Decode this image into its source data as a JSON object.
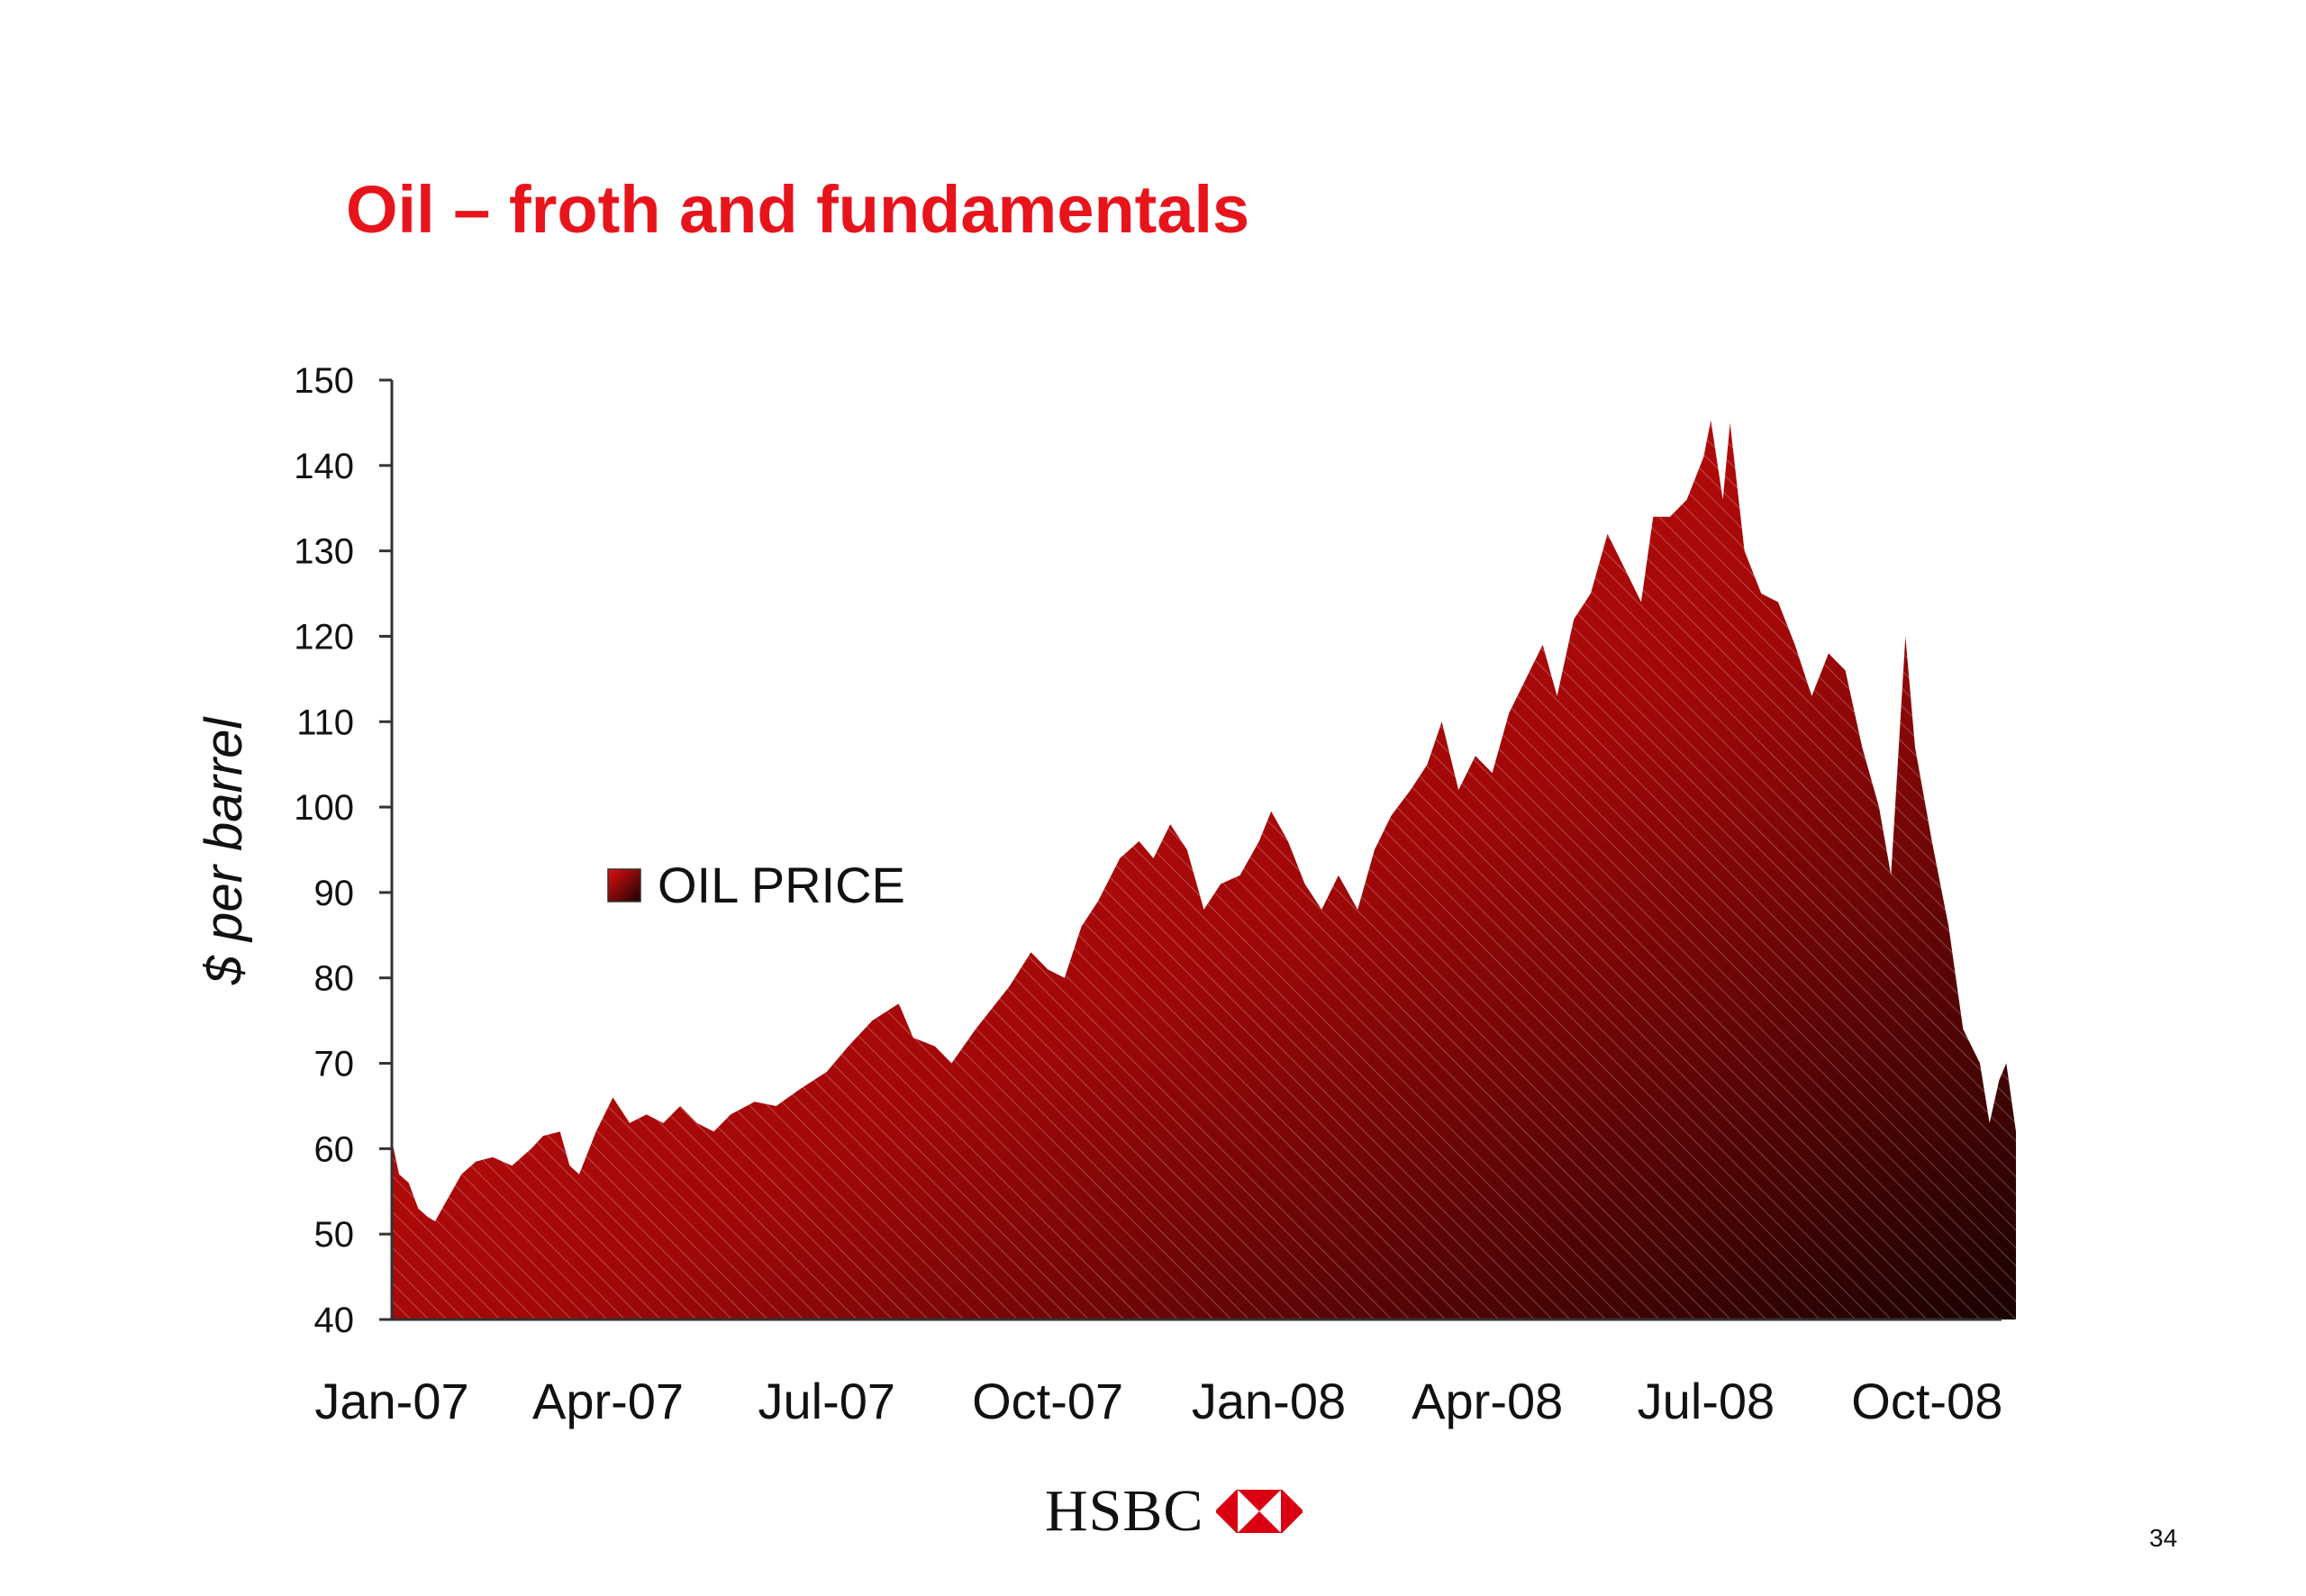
{
  "slide": {
    "title": "Oil – froth and fundamentals",
    "logo_text": "HSBC",
    "page_number": "34"
  },
  "colors": {
    "title": "#e8141c",
    "area_light": "#e0100f",
    "area_dark": "#1a0202",
    "logo_red": "#db0011"
  },
  "chart_data": {
    "type": "area",
    "ylabel": "$ per barrel",
    "xlabel": "",
    "ylim": [
      40,
      150
    ],
    "yticks": [
      "40",
      "50",
      "60",
      "70",
      "80",
      "90",
      "100",
      "110",
      "120",
      "130",
      "140",
      "150"
    ],
    "xticks": [
      "Jan-07",
      "Apr-07",
      "Jul-07",
      "Oct-07",
      "Jan-08",
      "Apr-08",
      "Jul-08",
      "Oct-08"
    ],
    "xlim": [
      "2007-01-01",
      "2008-11-01"
    ],
    "legend": {
      "label": "OIL PRICE",
      "placement": "center-left"
    },
    "grid": false,
    "series": [
      {
        "name": "OIL PRICE",
        "points": [
          [
            "2007-01-01",
            61
          ],
          [
            "2007-01-04",
            57
          ],
          [
            "2007-01-08",
            56
          ],
          [
            "2007-01-12",
            53
          ],
          [
            "2007-01-16",
            52
          ],
          [
            "2007-01-19",
            51.5
          ],
          [
            "2007-01-24",
            54
          ],
          [
            "2007-01-30",
            57
          ],
          [
            "2007-02-05",
            58.5
          ],
          [
            "2007-02-12",
            59
          ],
          [
            "2007-02-20",
            58
          ],
          [
            "2007-02-28",
            60
          ],
          [
            "2007-03-05",
            61.5
          ],
          [
            "2007-03-12",
            62
          ],
          [
            "2007-03-16",
            58
          ],
          [
            "2007-03-20",
            57
          ],
          [
            "2007-03-27",
            62
          ],
          [
            "2007-04-03",
            66
          ],
          [
            "2007-04-10",
            63
          ],
          [
            "2007-04-17",
            64
          ],
          [
            "2007-04-24",
            63
          ],
          [
            "2007-05-01",
            65
          ],
          [
            "2007-05-08",
            63
          ],
          [
            "2007-05-15",
            62
          ],
          [
            "2007-05-22",
            64
          ],
          [
            "2007-06-01",
            65.5
          ],
          [
            "2007-06-10",
            65
          ],
          [
            "2007-06-20",
            67
          ],
          [
            "2007-07-01",
            69
          ],
          [
            "2007-07-10",
            72
          ],
          [
            "2007-07-20",
            75
          ],
          [
            "2007-07-31",
            77
          ],
          [
            "2007-08-06",
            73
          ],
          [
            "2007-08-15",
            72
          ],
          [
            "2007-08-22",
            70
          ],
          [
            "2007-09-01",
            74
          ],
          [
            "2007-09-15",
            79
          ],
          [
            "2007-09-24",
            83
          ],
          [
            "2007-10-01",
            81
          ],
          [
            "2007-10-08",
            80
          ],
          [
            "2007-10-15",
            86
          ],
          [
            "2007-10-22",
            89
          ],
          [
            "2007-10-31",
            94
          ],
          [
            "2007-11-08",
            96
          ],
          [
            "2007-11-14",
            94
          ],
          [
            "2007-11-21",
            98
          ],
          [
            "2007-11-28",
            95
          ],
          [
            "2007-12-05",
            88
          ],
          [
            "2007-12-12",
            91
          ],
          [
            "2007-12-20",
            92
          ],
          [
            "2007-12-28",
            96
          ],
          [
            "2008-01-02",
            99.5
          ],
          [
            "2008-01-09",
            96
          ],
          [
            "2008-01-16",
            91
          ],
          [
            "2008-01-23",
            88
          ],
          [
            "2008-01-30",
            92
          ],
          [
            "2008-02-07",
            88
          ],
          [
            "2008-02-14",
            95
          ],
          [
            "2008-02-21",
            99
          ],
          [
            "2008-02-29",
            102
          ],
          [
            "2008-03-07",
            105
          ],
          [
            "2008-03-13",
            110
          ],
          [
            "2008-03-20",
            102
          ],
          [
            "2008-03-27",
            106
          ],
          [
            "2008-04-03",
            104
          ],
          [
            "2008-04-10",
            111
          ],
          [
            "2008-04-17",
            115
          ],
          [
            "2008-04-24",
            119
          ],
          [
            "2008-04-30",
            113
          ],
          [
            "2008-05-07",
            122
          ],
          [
            "2008-05-14",
            125
          ],
          [
            "2008-05-21",
            132
          ],
          [
            "2008-05-28",
            128
          ],
          [
            "2008-06-04",
            124
          ],
          [
            "2008-06-09",
            134
          ],
          [
            "2008-06-16",
            134
          ],
          [
            "2008-06-23",
            136
          ],
          [
            "2008-06-30",
            141
          ],
          [
            "2008-07-03",
            145.3
          ],
          [
            "2008-07-08",
            136
          ],
          [
            "2008-07-11",
            145
          ],
          [
            "2008-07-17",
            130
          ],
          [
            "2008-07-24",
            125
          ],
          [
            "2008-07-31",
            124
          ],
          [
            "2008-08-07",
            119
          ],
          [
            "2008-08-14",
            113
          ],
          [
            "2008-08-21",
            118
          ],
          [
            "2008-08-28",
            116
          ],
          [
            "2008-09-04",
            107
          ],
          [
            "2008-09-11",
            100
          ],
          [
            "2008-09-16",
            92
          ],
          [
            "2008-09-22",
            120
          ],
          [
            "2008-09-26",
            107
          ],
          [
            "2008-10-03",
            96
          ],
          [
            "2008-10-10",
            86
          ],
          [
            "2008-10-16",
            74
          ],
          [
            "2008-10-23",
            70
          ],
          [
            "2008-10-27",
            63
          ],
          [
            "2008-10-31",
            68
          ],
          [
            "2008-11-03",
            70
          ],
          [
            "2008-11-07",
            62
          ]
        ]
      }
    ]
  }
}
